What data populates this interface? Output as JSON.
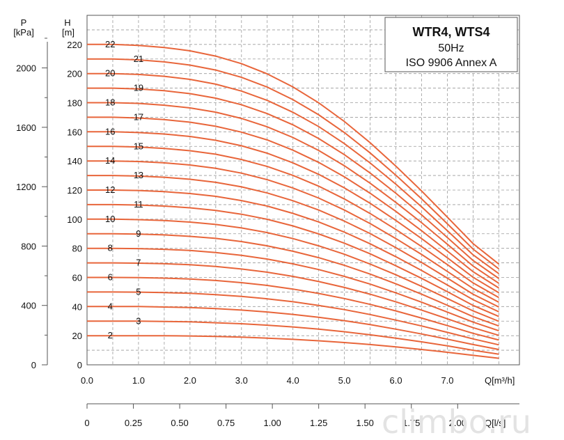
{
  "chart_data": {
    "type": "line",
    "title": "WTR4, WTS4",
    "subtitle_lines": [
      "50Hz",
      "ISO 9906  Annex A"
    ],
    "ylabel_head": [
      "H",
      "[m]"
    ],
    "ylabel_pressure": [
      "P",
      "[kPa]"
    ],
    "xlabel": "Q[m³/h]",
    "xlabel_secondary": "Q[l/s]",
    "xlim": [
      0,
      8.4
    ],
    "ylim": [
      0,
      240
    ],
    "x_ticks": [
      "0.0",
      "1.0",
      "2.0",
      "3.0",
      "4.0",
      "5.0",
      "6.0",
      "7.0"
    ],
    "x_secondary_ticks": [
      "0",
      "0.25",
      "0.50",
      "0.75",
      "1.00",
      "1.25",
      "1.50",
      "1.75",
      "2.00"
    ],
    "y_ticks": [
      "0",
      "20",
      "40",
      "60",
      "80",
      "100",
      "120",
      "140",
      "160",
      "180",
      "200",
      "220"
    ],
    "p_ticks": [
      "0",
      "400",
      "800",
      "1200",
      "1600",
      "2000"
    ],
    "grid": true,
    "x": [
      0,
      0.5,
      1.0,
      1.5,
      2.0,
      2.5,
      3.0,
      3.5,
      4.0,
      4.5,
      5.0,
      5.5,
      6.0,
      6.5,
      7.0,
      7.5,
      8.0
    ],
    "series": [
      {
        "name": "2",
        "values": [
          20,
          20,
          20,
          20,
          19.8,
          19.5,
          19,
          18.3,
          17.5,
          16.5,
          15.3,
          13.9,
          12.3,
          10.5,
          8.6,
          6.5,
          4.5
        ]
      },
      {
        "name": "3",
        "values": [
          30,
          30,
          30,
          29.8,
          29.5,
          28.9,
          28.2,
          27.2,
          26,
          24.5,
          22.7,
          20.6,
          18.3,
          15.8,
          13,
          10,
          7.3
        ]
      },
      {
        "name": "4",
        "values": [
          40,
          40,
          40,
          39.7,
          39.3,
          38.6,
          37.6,
          36.3,
          34.6,
          32.6,
          30.3,
          27.6,
          24.5,
          21.2,
          17.6,
          13.9,
          10.5
        ]
      },
      {
        "name": "5",
        "values": [
          50,
          50,
          49.9,
          49.6,
          49.1,
          48.2,
          47,
          45.3,
          43.3,
          40.8,
          37.9,
          34.5,
          30.7,
          26.7,
          22.3,
          17.8,
          13.7
        ]
      },
      {
        "name": "6",
        "values": [
          60,
          60,
          59.9,
          59.5,
          58.9,
          57.9,
          56.4,
          54.5,
          52,
          49,
          45.5,
          41.5,
          37,
          32.1,
          26.9,
          21.6,
          17
        ]
      },
      {
        "name": "7",
        "values": [
          70,
          70,
          69.8,
          69.4,
          68.7,
          67.5,
          65.8,
          63.6,
          60.7,
          57.2,
          53.1,
          48.5,
          43.2,
          37.6,
          31.6,
          25.5,
          20.2
        ]
      },
      {
        "name": "8",
        "values": [
          80,
          80,
          79.8,
          79.3,
          78.5,
          77.1,
          75.2,
          72.6,
          69.3,
          65.4,
          60.7,
          55.4,
          49.4,
          43,
          36.2,
          29.3,
          23.4
        ]
      },
      {
        "name": "9",
        "values": [
          90,
          90,
          89.8,
          89.2,
          88.2,
          86.8,
          84.6,
          81.7,
          78,
          73.6,
          68.3,
          62.3,
          55.6,
          48.5,
          40.9,
          33.1,
          26.7
        ]
      },
      {
        "name": "10",
        "values": [
          100,
          100,
          99.7,
          99.1,
          98,
          96.4,
          94,
          90.8,
          86.7,
          81.7,
          75.9,
          69.2,
          61.8,
          53.9,
          45.5,
          37,
          29.9
        ]
      },
      {
        "name": "11",
        "values": [
          110,
          110,
          109.7,
          109,
          107.8,
          106,
          103.4,
          99.9,
          95.4,
          89.9,
          83.5,
          76.2,
          68,
          59.4,
          50.2,
          40.8,
          33.2
        ]
      },
      {
        "name": "12",
        "values": [
          120,
          120,
          119.7,
          118.9,
          117.6,
          115.7,
          112.8,
          109,
          104,
          98.1,
          91.1,
          83.1,
          74.2,
          64.8,
          54.8,
          44.7,
          36.4
        ]
      },
      {
        "name": "13",
        "values": [
          130,
          130,
          129.6,
          128.8,
          127.4,
          125.3,
          122.2,
          118,
          112.7,
          106.3,
          98.7,
          90.1,
          80.4,
          70.3,
          59.5,
          48.5,
          39.7
        ]
      },
      {
        "name": "14",
        "values": [
          140,
          140,
          139.6,
          138.7,
          137.2,
          134.9,
          131.6,
          127.1,
          121.4,
          114.5,
          106.3,
          97,
          86.7,
          75.8,
          64.1,
          52.4,
          43
        ]
      },
      {
        "name": "15",
        "values": [
          150,
          150,
          149.6,
          148.6,
          147,
          144.6,
          141,
          136.2,
          130.1,
          122.7,
          113.9,
          103.9,
          92.9,
          81.2,
          68.8,
          56.2,
          46.2
        ]
      },
      {
        "name": "16",
        "values": [
          160,
          160,
          159.5,
          158.5,
          156.8,
          154.2,
          150.4,
          145.3,
          138.7,
          130.8,
          121.5,
          110.9,
          99.1,
          86.7,
          73.5,
          60.1,
          49.5
        ]
      },
      {
        "name": "17",
        "values": [
          170,
          170,
          169.5,
          168.4,
          166.6,
          163.8,
          159.8,
          154.4,
          147.4,
          139,
          129.1,
          117.8,
          105.3,
          92.1,
          78.1,
          63.9,
          52.8
        ]
      },
      {
        "name": "18",
        "values": [
          180,
          180,
          179.5,
          178.3,
          176.4,
          173.5,
          169.2,
          163.4,
          156.1,
          147.2,
          136.7,
          124.7,
          111.5,
          97.6,
          82.8,
          67.8,
          56
        ]
      },
      {
        "name": "19",
        "values": [
          190,
          190,
          189.4,
          188.2,
          186.2,
          183.1,
          178.6,
          172.5,
          164.8,
          155.4,
          144.3,
          131.7,
          117.8,
          103,
          87.4,
          71.6,
          59.3
        ]
      },
      {
        "name": "20",
        "values": [
          200,
          200,
          199.4,
          198.1,
          196,
          192.7,
          188,
          181.6,
          173.4,
          163.6,
          151.9,
          138.6,
          124,
          108.5,
          92.1,
          75.5,
          62.6
        ]
      },
      {
        "name": "21",
        "values": [
          210,
          210,
          209.4,
          208,
          205.8,
          202.4,
          197.4,
          190.7,
          182.1,
          171.7,
          159.5,
          145.5,
          130.2,
          114,
          96.8,
          79.4,
          65.9
        ]
      },
      {
        "name": "22",
        "values": [
          220,
          220,
          219.3,
          217.9,
          215.6,
          212,
          206.8,
          199.8,
          190.8,
          179.9,
          167.1,
          152.5,
          136.4,
          119.4,
          101.4,
          83.2,
          69.2
        ]
      }
    ],
    "series_color": "#e8653a"
  },
  "watermark": "climbo.ru"
}
